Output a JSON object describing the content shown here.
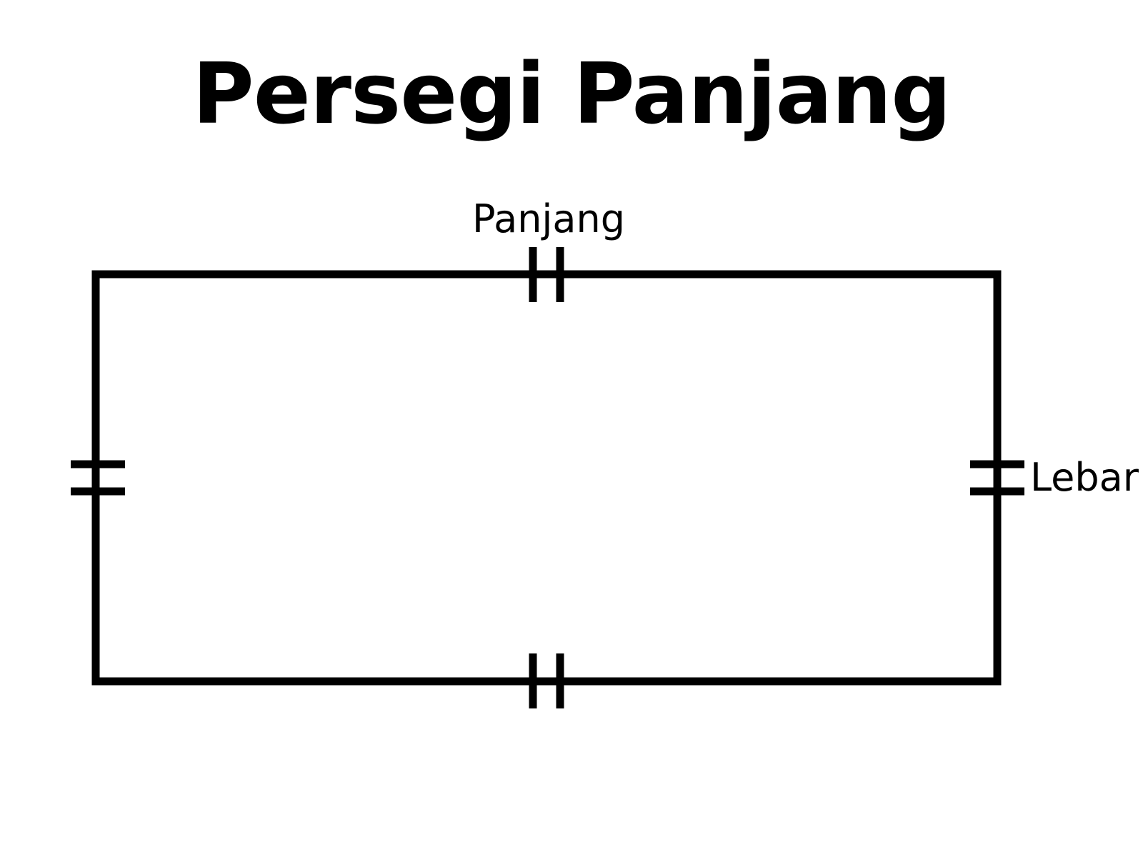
{
  "title": "Persegi Panjang",
  "labels": {
    "length": "Panjang",
    "width": "Lebar"
  },
  "colors": {
    "stroke": "#000000",
    "background": "#ffffff"
  }
}
